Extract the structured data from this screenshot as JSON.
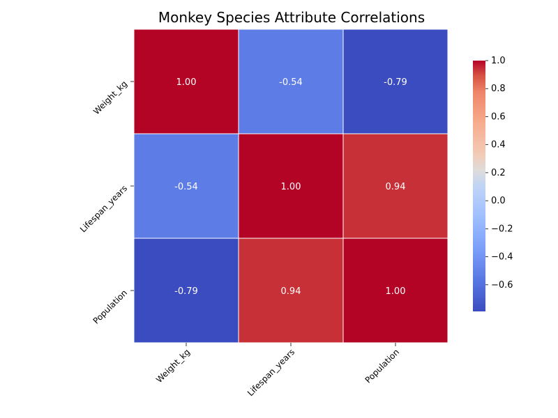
{
  "chart_data": {
    "type": "heatmap",
    "title": "Monkey Species Attribute Correlations",
    "x_labels": [
      "Weight_kg",
      "Lifespan_years",
      "Population"
    ],
    "y_labels": [
      "Weight_kg",
      "Lifespan_years",
      "Population"
    ],
    "values": [
      [
        1.0,
        -0.54,
        -0.79
      ],
      [
        -0.54,
        1.0,
        0.94
      ],
      [
        -0.79,
        0.94,
        1.0
      ]
    ],
    "value_format": "2 decimals",
    "colormap": "coolwarm",
    "colors": {
      "low": "#3b4cc0",
      "mid": "#dddcdc",
      "high": "#b40426",
      "grid_lines": "#ffffff",
      "annotation_text": "#ffffff"
    },
    "colorbar": {
      "range": [
        -0.79,
        1.0
      ],
      "ticks": [
        "1.0",
        "0.8",
        "0.6",
        "0.4",
        "0.2",
        "0.0",
        "−0.2",
        "−0.4",
        "−0.6"
      ],
      "tick_values": [
        1.0,
        0.8,
        0.6,
        0.4,
        0.2,
        0.0,
        -0.2,
        -0.4,
        -0.6
      ],
      "placement": "right"
    }
  }
}
